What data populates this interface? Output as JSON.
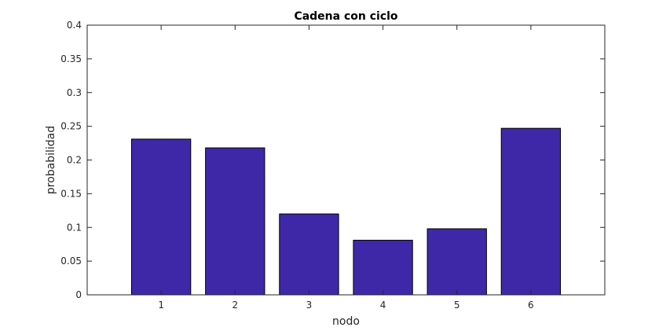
{
  "chart_data": {
    "type": "bar",
    "title": "Cadena con ciclo",
    "xlabel": "nodo",
    "ylabel": "probabilidad",
    "categories": [
      "1",
      "2",
      "3",
      "4",
      "5",
      "6"
    ],
    "values": [
      0.231,
      0.218,
      0.12,
      0.081,
      0.098,
      0.247
    ],
    "xlim": [
      0,
      7
    ],
    "ylim": [
      0,
      0.4
    ],
    "yticks": [
      0,
      0.05,
      0.1,
      0.15,
      0.2,
      0.25,
      0.3,
      0.35,
      0.4
    ],
    "ytick_labels": [
      "0",
      "0.05",
      "0.1",
      "0.15",
      "0.2",
      "0.25",
      "0.3",
      "0.35",
      "0.4"
    ],
    "grid": false,
    "bar_color": "#3f28a8",
    "edge_color": "#000000"
  }
}
